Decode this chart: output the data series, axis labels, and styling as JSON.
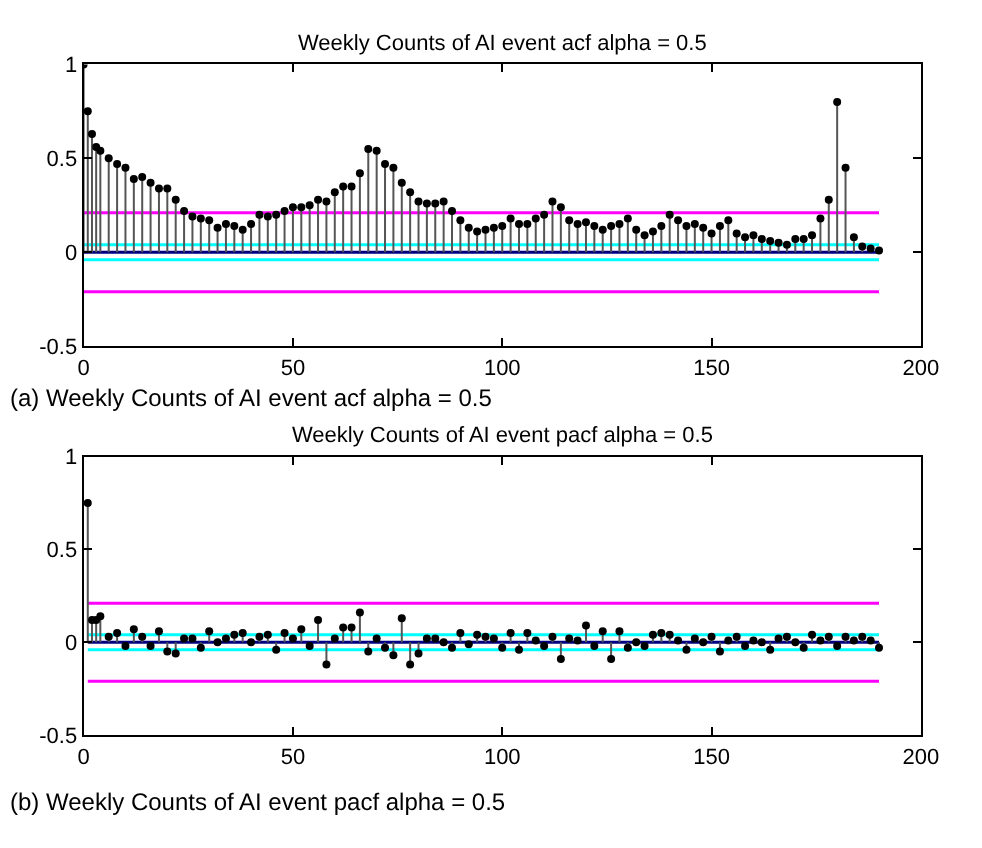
{
  "chart_data": [
    {
      "type": "lollipop",
      "title": "Weekly Counts of AI event acf alpha = 0.5",
      "annotations": [
        "(a) Weekly Counts of AI event acf alpha = 0.5"
      ],
      "color": "#000000",
      "marker": "circle",
      "x": [
        0,
        1,
        2,
        3,
        4,
        6,
        8,
        10,
        12,
        14,
        16,
        18,
        20,
        22,
        24,
        26,
        28,
        30,
        32,
        34,
        36,
        38,
        40,
        42,
        44,
        46,
        48,
        50,
        52,
        54,
        56,
        58,
        60,
        62,
        64,
        66,
        68,
        70,
        72,
        74,
        76,
        78,
        80,
        82,
        84,
        86,
        88,
        90,
        92,
        94,
        96,
        98,
        100,
        102,
        104,
        106,
        108,
        110,
        112,
        114,
        116,
        118,
        120,
        122,
        124,
        126,
        128,
        130,
        132,
        134,
        136,
        138,
        140,
        142,
        144,
        146,
        148,
        150,
        152,
        154,
        156,
        158,
        160,
        162,
        164,
        166,
        168,
        170,
        172,
        174,
        176,
        178,
        180,
        182,
        184,
        186,
        188,
        190
      ],
      "values": [
        1,
        0.75,
        0.63,
        0.56,
        0.54,
        0.5,
        0.47,
        0.45,
        0.39,
        0.4,
        0.37,
        0.34,
        0.34,
        0.28,
        0.22,
        0.19,
        0.18,
        0.17,
        0.13,
        0.15,
        0.14,
        0.12,
        0.15,
        0.2,
        0.19,
        0.2,
        0.22,
        0.24,
        0.24,
        0.25,
        0.28,
        0.27,
        0.32,
        0.35,
        0.35,
        0.42,
        0.55,
        0.54,
        0.47,
        0.45,
        0.37,
        0.32,
        0.27,
        0.26,
        0.26,
        0.27,
        0.22,
        0.17,
        0.13,
        0.11,
        0.12,
        0.13,
        0.14,
        0.18,
        0.15,
        0.15,
        0.18,
        0.2,
        0.27,
        0.24,
        0.17,
        0.15,
        0.16,
        0.14,
        0.12,
        0.14,
        0.15,
        0.18,
        0.12,
        0.09,
        0.11,
        0.14,
        0.2,
        0.17,
        0.14,
        0.15,
        0.13,
        0.1,
        0.14,
        0.17,
        0.1,
        0.08,
        0.09,
        0.07,
        0.06,
        0.05,
        0.04,
        0.07,
        0.07,
        0.09,
        0.18,
        0.28,
        0.8,
        0.45,
        0.08,
        0.03,
        0.02,
        0.01
      ],
      "xlim": [
        0,
        200
      ],
      "xticks": [
        0,
        50,
        100,
        150,
        200
      ],
      "ylim": [
        -0.5,
        1
      ],
      "yticks": [
        -0.5,
        0,
        0.5,
        1
      ],
      "ref_lines": [
        {
          "axis": "y",
          "value": 0.21,
          "color": "#ff00ff"
        },
        {
          "axis": "y",
          "value": -0.21,
          "color": "#ff00ff"
        },
        {
          "axis": "y",
          "value": 0.04,
          "color": "#00ffff"
        },
        {
          "axis": "y",
          "value": -0.04,
          "color": "#00ffff"
        },
        {
          "axis": "y",
          "value": 0,
          "color": "#000080"
        }
      ]
    },
    {
      "type": "lollipop",
      "title": "Weekly Counts of AI event pacf alpha = 0.5",
      "annotations": [
        "(b) Weekly Counts of AI event pacf alpha = 0.5"
      ],
      "color": "#000000",
      "marker": "circle",
      "x": [
        1,
        2,
        3,
        4,
        6,
        8,
        10,
        12,
        14,
        16,
        18,
        20,
        22,
        24,
        26,
        28,
        30,
        32,
        34,
        36,
        38,
        40,
        42,
        44,
        46,
        48,
        50,
        52,
        54,
        56,
        58,
        60,
        62,
        64,
        66,
        68,
        70,
        72,
        74,
        76,
        78,
        80,
        82,
        84,
        86,
        88,
        90,
        92,
        94,
        96,
        98,
        100,
        102,
        104,
        106,
        108,
        110,
        112,
        114,
        116,
        118,
        120,
        122,
        124,
        126,
        128,
        130,
        132,
        134,
        136,
        138,
        140,
        142,
        144,
        146,
        148,
        150,
        152,
        154,
        156,
        158,
        160,
        162,
        164,
        166,
        168,
        170,
        172,
        174,
        176,
        178,
        180,
        182,
        184,
        186,
        188,
        190
      ],
      "values": [
        0.75,
        0.12,
        0.12,
        0.14,
        0.03,
        0.05,
        -0.02,
        0.07,
        0.03,
        -0.02,
        0.06,
        -0.05,
        -0.06,
        0.02,
        0.02,
        -0.03,
        0.06,
        0,
        0.02,
        0.04,
        0.05,
        0,
        0.03,
        0.04,
        -0.04,
        0.05,
        0.02,
        0.07,
        -0.02,
        0.12,
        -0.12,
        0.02,
        0.08,
        0.08,
        0.16,
        -0.05,
        0.02,
        -0.03,
        -0.07,
        0.13,
        -0.12,
        -0.06,
        0.02,
        0.02,
        0,
        -0.03,
        0.05,
        -0.01,
        0.04,
        0.03,
        0.02,
        -0.03,
        0.05,
        -0.04,
        0.05,
        0.01,
        -0.02,
        0.03,
        -0.09,
        0.02,
        0.01,
        0.09,
        -0.02,
        0.06,
        -0.09,
        0.06,
        -0.03,
        0,
        -0.02,
        0.04,
        0.05,
        0.04,
        0.01,
        -0.04,
        0.02,
        0,
        0.03,
        -0.05,
        0.01,
        0.03,
        -0.02,
        0.01,
        0,
        -0.04,
        0.02,
        0.03,
        0,
        -0.03,
        0.04,
        0.01,
        0.03,
        -0.02,
        0.03,
        0.01,
        0.03,
        0.01,
        -0.03
      ],
      "xlim": [
        0,
        200
      ],
      "xticks": [
        0,
        50,
        100,
        150,
        200
      ],
      "ylim": [
        -0.5,
        1
      ],
      "yticks": [
        -0.5,
        0,
        0.5,
        1
      ],
      "ref_lines": [
        {
          "axis": "y",
          "value": 0.21,
          "color": "#ff00ff"
        },
        {
          "axis": "y",
          "value": -0.21,
          "color": "#ff00ff"
        },
        {
          "axis": "y",
          "value": 0.04,
          "color": "#00ffff"
        },
        {
          "axis": "y",
          "value": -0.04,
          "color": "#00ffff"
        },
        {
          "axis": "y",
          "value": 0,
          "color": "#000080"
        }
      ]
    }
  ]
}
